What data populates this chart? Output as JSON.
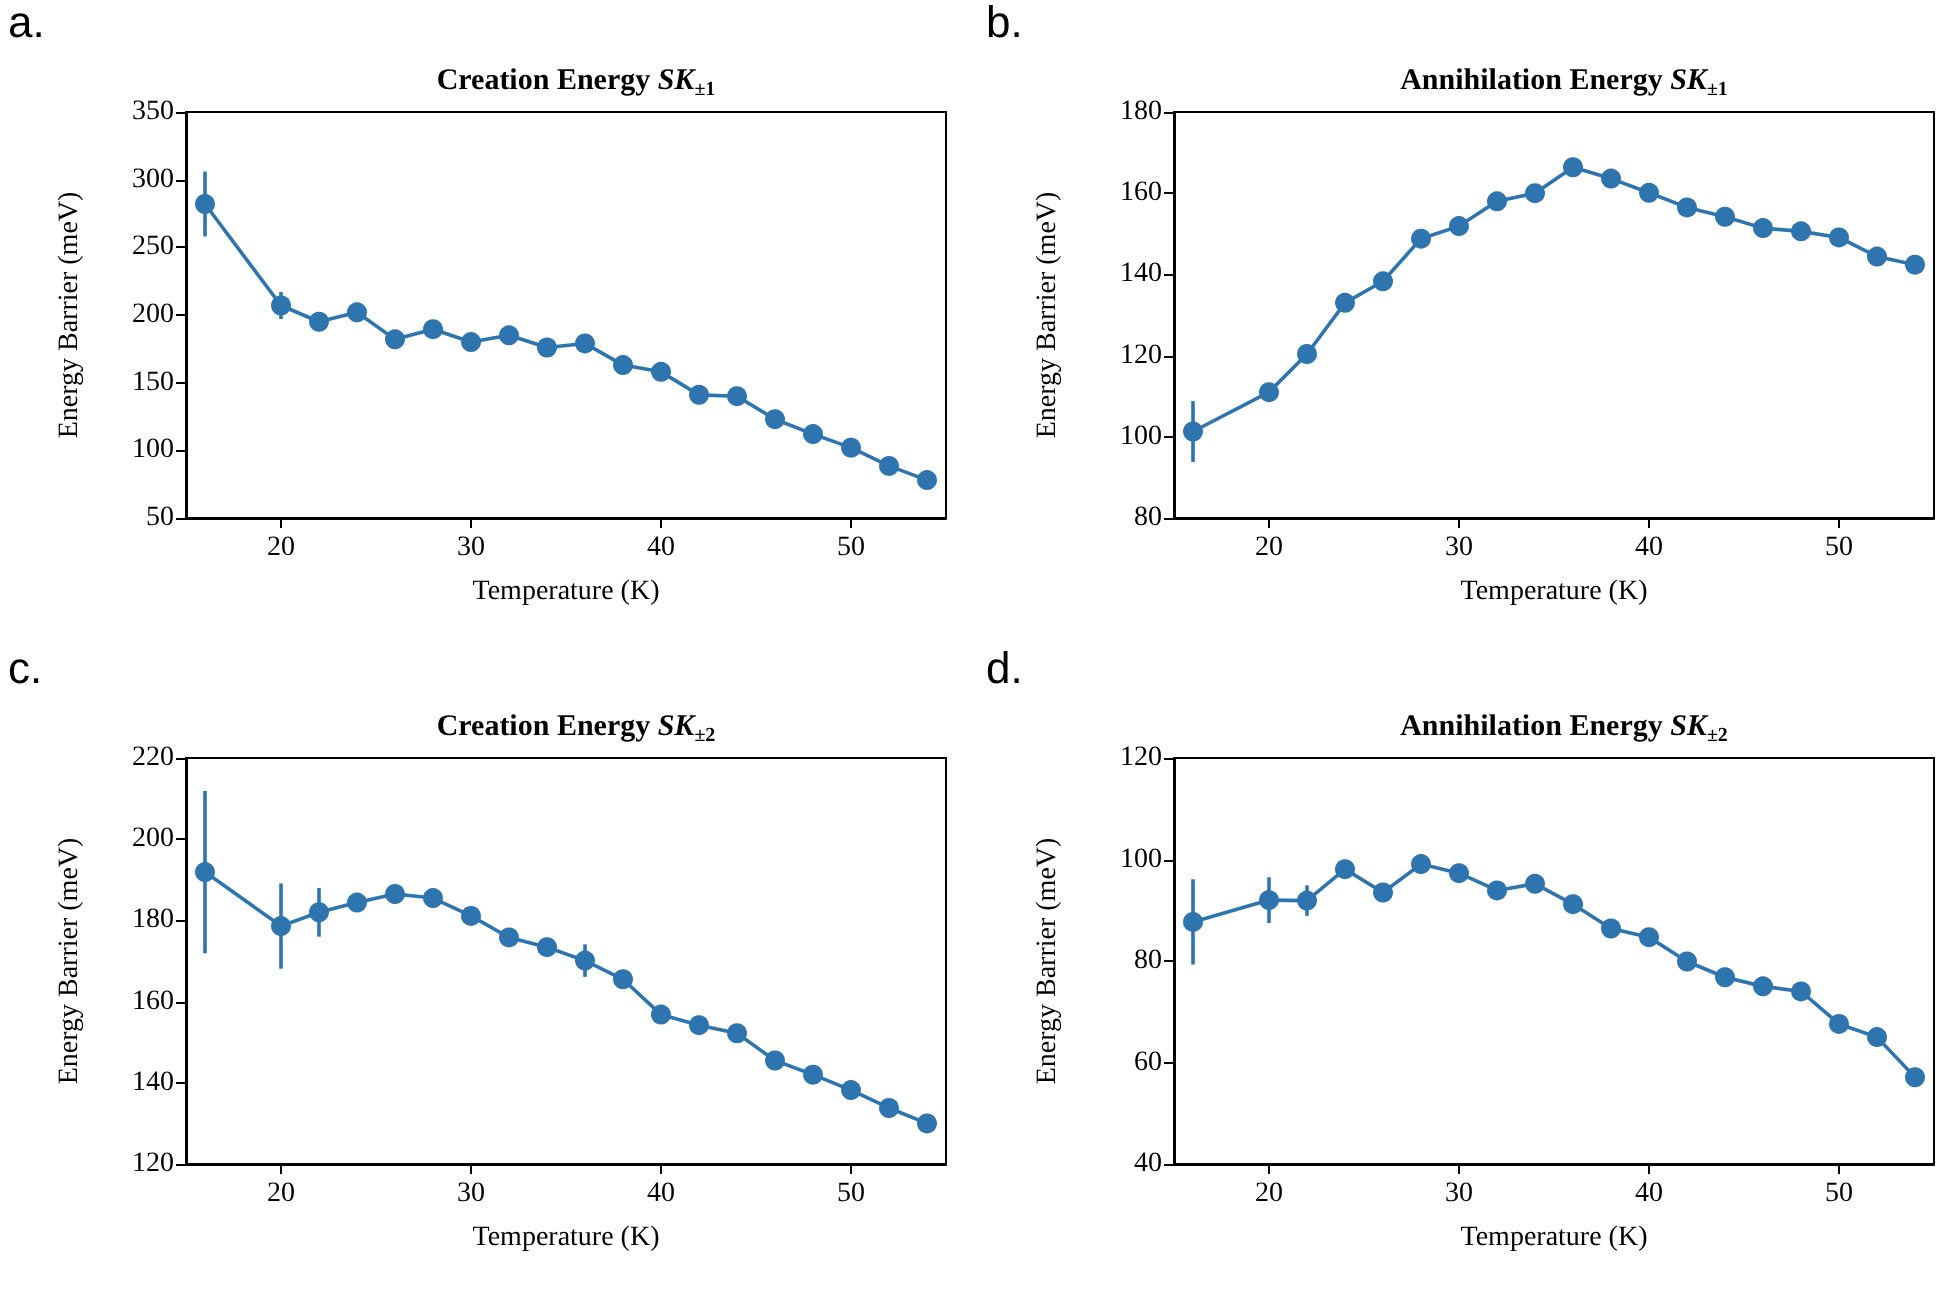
{
  "chart_data": [
    {
      "type": "line",
      "title": "Creation Energy SK$_{±1}$",
      "xlabel": "Temperature (K)",
      "ylabel": "Energy Barrier (meV)",
      "annotations": [
        "a."
      ],
      "x": [
        16,
        20,
        22,
        24,
        26,
        28,
        30,
        32,
        34,
        36,
        38,
        40,
        42,
        44,
        46,
        48,
        50,
        52,
        54
      ],
      "series": [
        {
          "color": "#2e75b0",
          "values": [
            282,
            207,
            195,
            202,
            182,
            189.5,
            180,
            185,
            176,
            179,
            163,
            158,
            141,
            140,
            123,
            112,
            102,
            88.5,
            78
          ],
          "errors": [
            24,
            10,
            null,
            null,
            null,
            null,
            null,
            null,
            null,
            null,
            null,
            null,
            null,
            null,
            null,
            null,
            null,
            null,
            null
          ]
        }
      ],
      "xlim": [
        15,
        55
      ],
      "xticks": [
        20,
        30,
        40,
        50
      ],
      "ylim": [
        50,
        350
      ],
      "yticks": [
        50,
        100,
        150,
        200,
        250,
        300,
        350
      ],
      "marker": "circle",
      "line_style": "solid"
    },
    {
      "type": "line",
      "title": "Annihilation Energy SK$_{±1}$",
      "xlabel": "Temperature (K)",
      "ylabel": "Energy Barrier (meV)",
      "annotations": [
        "b."
      ],
      "x": [
        16,
        20,
        22,
        24,
        26,
        28,
        30,
        32,
        34,
        36,
        38,
        40,
        42,
        44,
        46,
        48,
        50,
        52,
        54
      ],
      "series": [
        {
          "color": "#2e75b0",
          "values": [
            101.3,
            111,
            120.4,
            133,
            138.3,
            148.8,
            151.9,
            158,
            160,
            166.4,
            163.6,
            160.1,
            156.5,
            154.2,
            151.4,
            150.6,
            149.1,
            144.4,
            142.4
          ],
          "errors": [
            7.5,
            null,
            null,
            null,
            null,
            null,
            null,
            null,
            null,
            null,
            null,
            null,
            null,
            null,
            null,
            null,
            null,
            null,
            null
          ]
        }
      ],
      "xlim": [
        15,
        55
      ],
      "xticks": [
        20,
        30,
        40,
        50
      ],
      "ylim": [
        80,
        180
      ],
      "yticks": [
        80,
        100,
        120,
        140,
        160,
        180
      ],
      "marker": "circle",
      "line_style": "solid"
    },
    {
      "type": "line",
      "title": "Creation Energy SK$_{±2}$",
      "xlabel": "Temperature (K)",
      "ylabel": "Energy Barrier (meV)",
      "annotations": [
        "c."
      ],
      "x": [
        16,
        20,
        22,
        24,
        26,
        28,
        30,
        32,
        34,
        36,
        38,
        40,
        42,
        44,
        46,
        48,
        50,
        52,
        54
      ],
      "series": [
        {
          "color": "#2e75b0",
          "values": [
            191.9,
            178.6,
            182,
            184.4,
            186.5,
            185.5,
            181.1,
            175.8,
            173.4,
            170.1,
            165.5,
            156.8,
            154.2,
            152.2,
            145.5,
            142,
            138.2,
            133.8,
            130
          ],
          "errors": [
            20,
            10.5,
            6,
            null,
            null,
            null,
            null,
            null,
            null,
            4,
            null,
            null,
            null,
            null,
            null,
            null,
            null,
            null,
            null
          ]
        }
      ],
      "xlim": [
        15,
        55
      ],
      "xticks": [
        20,
        30,
        40,
        50
      ],
      "ylim": [
        120,
        220
      ],
      "yticks": [
        120,
        140,
        160,
        180,
        200,
        220
      ],
      "marker": "circle",
      "line_style": "solid"
    },
    {
      "type": "line",
      "title": "Annihilation Energy SK$_{±2}$",
      "xlabel": "Temperature (K)",
      "ylabel": "Energy Barrier (meV)",
      "annotations": [
        "d."
      ],
      "x": [
        16,
        20,
        22,
        24,
        26,
        28,
        30,
        32,
        34,
        36,
        38,
        40,
        42,
        44,
        46,
        48,
        50,
        52,
        54
      ],
      "series": [
        {
          "color": "#2e75b0",
          "values": [
            87.7,
            92,
            91.9,
            98.1,
            93.5,
            99.1,
            97.3,
            93.9,
            95.2,
            91.2,
            86.4,
            84.7,
            79.9,
            76.8,
            75,
            74,
            67.6,
            65,
            57.1
          ],
          "errors": [
            8.4,
            4.5,
            3,
            null,
            null,
            null,
            null,
            null,
            null,
            null,
            null,
            null,
            null,
            null,
            null,
            null,
            null,
            null,
            null
          ]
        }
      ],
      "xlim": [
        15,
        55
      ],
      "xticks": [
        20,
        30,
        40,
        50
      ],
      "ylim": [
        40,
        120
      ],
      "yticks": [
        40,
        60,
        80,
        100,
        120
      ],
      "marker": "circle",
      "line_style": "solid"
    }
  ]
}
